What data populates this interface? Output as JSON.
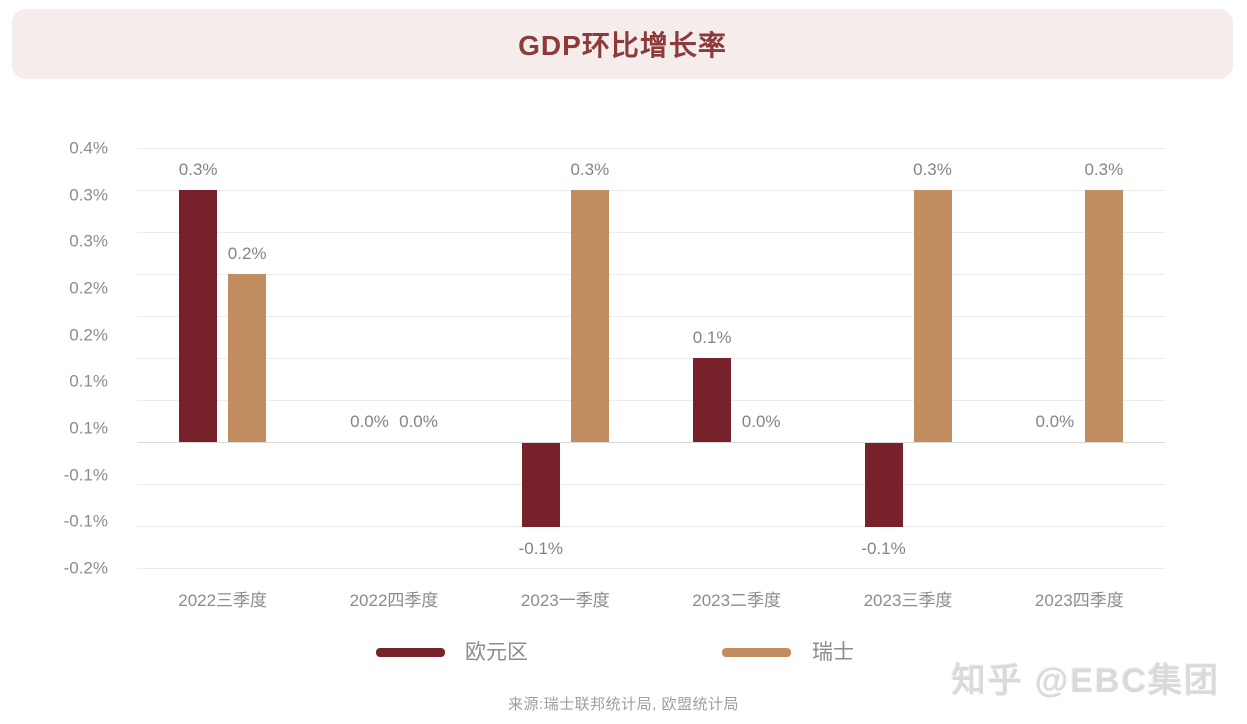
{
  "page": {
    "title": "GDP环比增长率",
    "source": "来源:瑞士联邦统计局, 欧盟统计局",
    "watermark": "知乎 @EBC集团"
  },
  "legend": {
    "items": [
      {
        "label": "欧元区",
        "color": "#77222b"
      },
      {
        "label": "瑞士",
        "color": "#c18d61"
      }
    ]
  },
  "chart_data": {
    "type": "bar",
    "title": "GDP环比增长率",
    "categories": [
      "2022三季度",
      "2022四季度",
      "2023一季度",
      "2023二季度",
      "2023三季度",
      "2023四季度"
    ],
    "series": [
      {
        "name": "欧元区",
        "color": "#77222b",
        "values": [
          0.3,
          0.0,
          -0.1,
          0.1,
          -0.1,
          0.0
        ],
        "value_labels": [
          "0.3%",
          "0.0%",
          "-0.1%",
          "0.1%",
          "-0.1%",
          "0.0%"
        ]
      },
      {
        "name": "瑞士",
        "color": "#c18d61",
        "values": [
          0.2,
          0.0,
          0.3,
          0.0,
          0.3,
          0.3
        ],
        "value_labels": [
          "0.2%",
          "0.0%",
          "0.3%",
          "0.0%",
          "0.3%",
          "0.3%"
        ]
      }
    ],
    "unit": "%",
    "y_axis_tick_labels": [
      "0.4%",
      "0.3%",
      "0.3%",
      "0.2%",
      "0.2%",
      "0.1%",
      "0.1%",
      "-0.1%",
      "-0.1%",
      "-0.2%"
    ],
    "gridline_values": [
      0.35,
      0.3,
      0.25,
      0.2,
      0.15,
      0.1,
      0.05,
      0.0,
      -0.05,
      -0.1,
      -0.15
    ],
    "ylim": [
      -0.15,
      0.35
    ],
    "baseline_value": 0.0,
    "grid": true,
    "legend_position": "bottom",
    "xlabel": "",
    "ylabel": ""
  },
  "colors": {
    "header_bg": "#f4edec",
    "title_text": "#8d3a3a",
    "gridline": "#ececec",
    "baseline": "#d9d9d9",
    "axis_text": "#8c8c8c",
    "data_label_text": "#848484",
    "source_text": "#9e9e9e",
    "watermark_text": "#dadada",
    "eurozone_bar": "#77222b",
    "switzerland_bar": "#c18d61"
  }
}
